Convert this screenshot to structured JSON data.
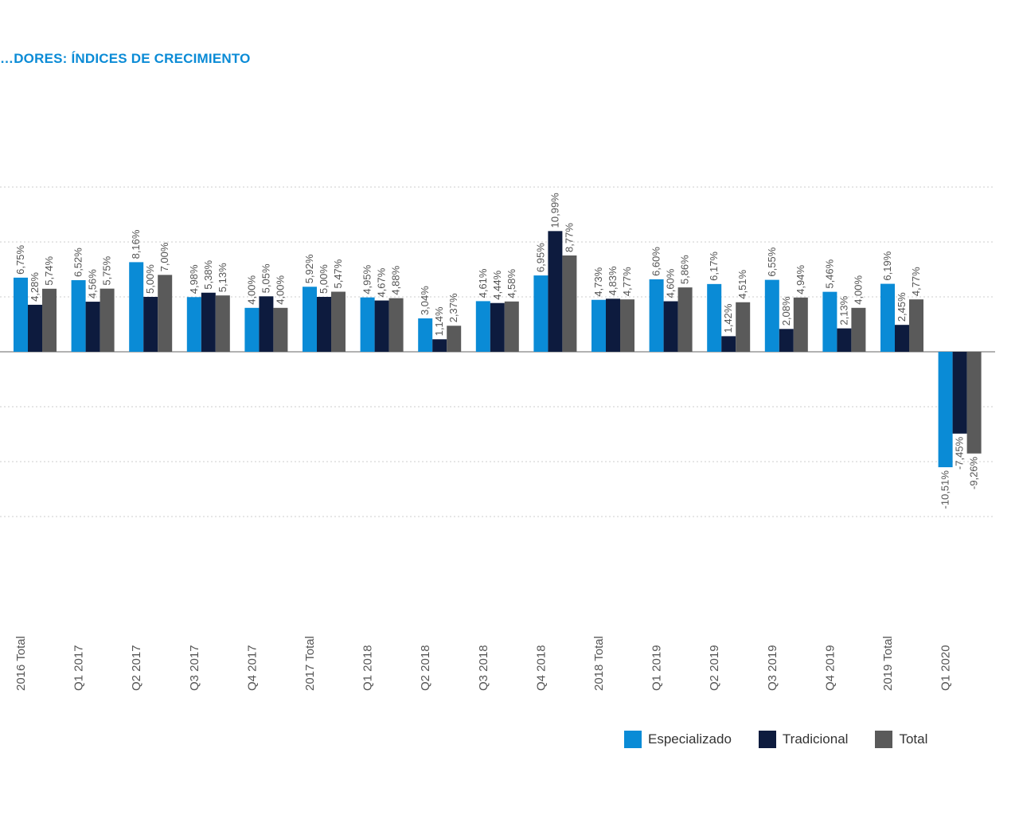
{
  "title": "…DORES: ÍNDICES DE CRECIMIENTO",
  "colors": {
    "especializado": "#0a8bd6",
    "tradicional": "#0d1b3e",
    "total": "#5a5a5a",
    "title": "#0a8bd6",
    "grid": "#cccccc",
    "zero_line": "#999999"
  },
  "chart_data": {
    "type": "bar",
    "title": "…DORES: ÍNDICES DE CRECIMIENTO",
    "categories": [
      "2016 Total",
      "Q1 2017",
      "Q2 2017",
      "Q3 2017",
      "Q4 2017",
      "2017 Total",
      "Q1 2018",
      "Q2 2018",
      "Q3 2018",
      "Q4 2018",
      "2018 Total",
      "Q1 2019",
      "Q2 2019",
      "Q3 2019",
      "Q4 2019",
      "2019 Total",
      "Q1 2020"
    ],
    "series": [
      {
        "name": "Especializado",
        "values": [
          6.75,
          6.52,
          8.16,
          4.98,
          4.0,
          5.92,
          4.95,
          3.04,
          4.61,
          6.95,
          4.73,
          6.6,
          6.17,
          6.55,
          5.46,
          6.19,
          -10.51
        ],
        "labels": [
          "6,75%",
          "6,52%",
          "8,16%",
          "4,98%",
          "4,00%",
          "5,92%",
          "4,95%",
          "3,04%",
          "4,61%",
          "6,95%",
          "4,73%",
          "6,60%",
          "6,17%",
          "6,55%",
          "5,46%",
          "6,19%",
          "-10,51%"
        ]
      },
      {
        "name": "Tradicional",
        "values": [
          4.28,
          4.56,
          5.0,
          5.38,
          5.05,
          5.0,
          4.67,
          1.14,
          4.44,
          10.99,
          4.83,
          4.6,
          1.42,
          2.08,
          2.13,
          2.45,
          -7.45
        ],
        "labels": [
          "4,28%",
          "4,56%",
          "5,00%",
          "5,38%",
          "5,05%",
          "5,00%",
          "4,67%",
          "1,14%",
          "4,44%",
          "10,99%",
          "4,83%",
          "4,60%",
          "1,42%",
          "2,08%",
          "2,13%",
          "2,45%",
          "-7,45%"
        ]
      },
      {
        "name": "Total",
        "values": [
          5.74,
          5.75,
          7.0,
          5.13,
          4.0,
          5.47,
          4.88,
          2.37,
          4.58,
          8.77,
          4.77,
          5.86,
          4.51,
          4.94,
          4.0,
          4.77,
          -9.26
        ],
        "labels": [
          "5,74%",
          "5,75%",
          "7,00%",
          "5,13%",
          "4,00%",
          "5,47%",
          "4,88%",
          "2,37%",
          "4,58%",
          "8,77%",
          "4,77%",
          "5,86%",
          "4,51%",
          "4,94%",
          "4,00%",
          "4,77%",
          "-9,26%"
        ]
      }
    ],
    "ylim": [
      -15,
      15
    ],
    "grid": true,
    "legend_position": "bottom-right"
  },
  "legend": [
    {
      "label": "Especializado",
      "color_key": "especializado"
    },
    {
      "label": "Tradicional",
      "color_key": "tradicional"
    },
    {
      "label": "Total",
      "color_key": "total"
    }
  ]
}
